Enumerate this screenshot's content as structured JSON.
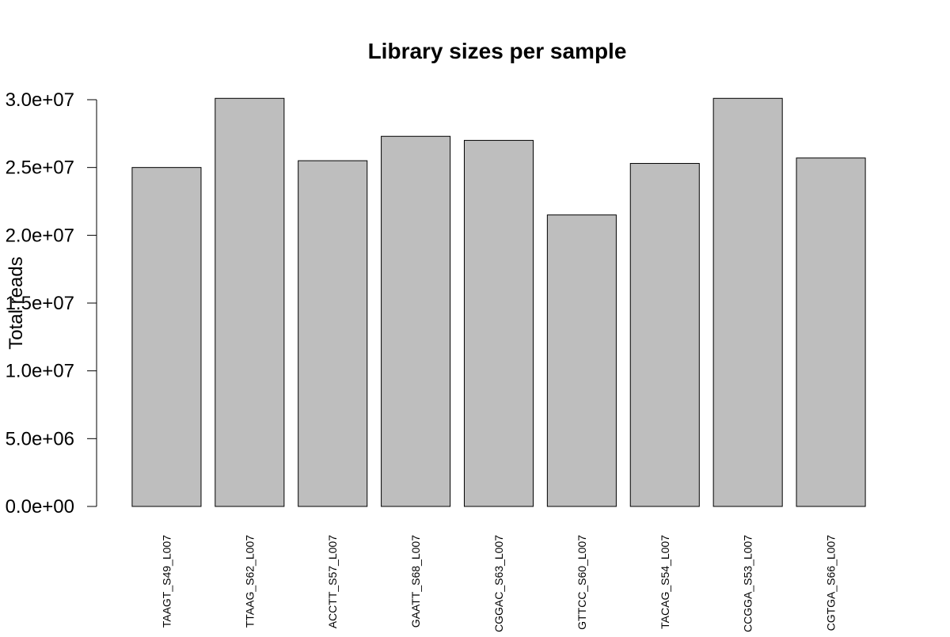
{
  "chart_data": {
    "type": "bar",
    "title": "Library sizes per sample",
    "xlabel": "",
    "ylabel": "Total reads",
    "categories": [
      "TAAGT_S49_L007",
      "TTAAG_S62_L007",
      "ACCTT_S57_L007",
      "GAATT_S68_L007",
      "CGGAC_S63_L007",
      "GTTCC_S60_L007",
      "TACAG_S54_L007",
      "CCGGA_S53_L007",
      "CGTGA_S66_L007"
    ],
    "values": [
      25000000,
      30100000,
      25500000,
      27300000,
      27000000,
      21500000,
      25300000,
      30100000,
      25700000
    ],
    "ylim": [
      0,
      30000000
    ],
    "yticks": [
      0,
      5000000,
      10000000,
      15000000,
      20000000,
      25000000,
      30000000
    ],
    "ytick_labels": [
      "0.0e+00",
      "5.0e+06",
      "1.0e+07",
      "1.5e+07",
      "2.0e+07",
      "2.5e+07",
      "3.0e+07"
    ],
    "grid": false,
    "colors": {
      "bar_fill": "#bebebe",
      "bar_stroke": "#000000",
      "axis": "#000000"
    }
  }
}
